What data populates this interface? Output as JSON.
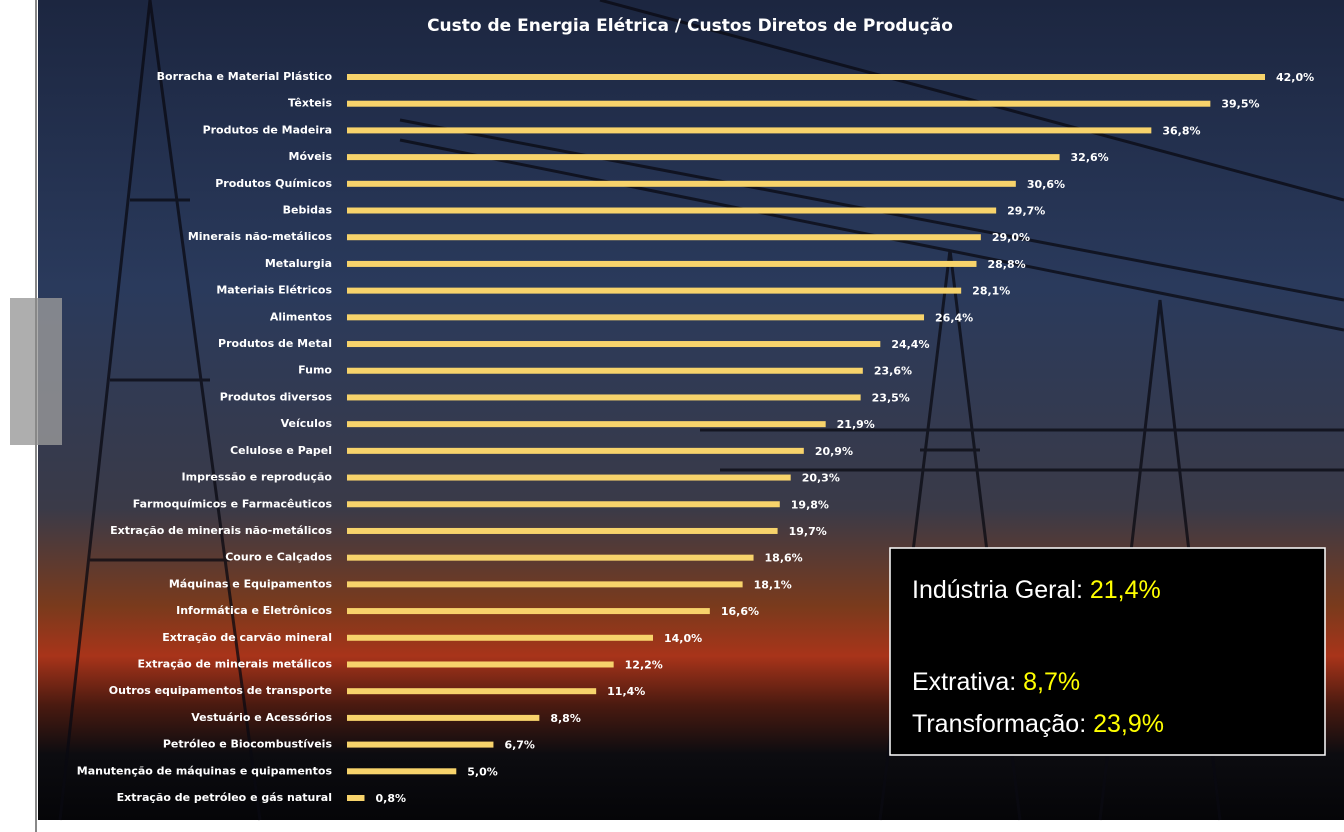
{
  "chart_data": {
    "type": "bar",
    "orientation": "horizontal",
    "title": "Custo de Energia Elétrica / Custos Diretos de Produção",
    "categories": [
      "Borracha e Material Plástico",
      "Têxteis",
      "Produtos de Madeira",
      "Móveis",
      "Produtos Químicos",
      "Bebidas",
      "Minerais não-metálicos",
      "Metalurgia",
      "Materiais Elétricos",
      "Alimentos",
      "Produtos de Metal",
      "Fumo",
      "Produtos diversos",
      "Veículos",
      "Celulose e Papel",
      "Impressão e reprodução",
      "Farmoquímicos e Farmacêuticos",
      "Extração de minerais não-metálicos",
      "Couro e Calçados",
      "Máquinas e Equipamentos",
      "Informática e Eletrônicos",
      "Extração de carvão mineral",
      "Extração de minerais metálicos",
      "Outros equipamentos de transporte",
      "Vestuário e Acessórios",
      "Petróleo e Biocombustíveis",
      "Manutenção de máquinas e quipamentos",
      "Extração de petróleo e gás natural"
    ],
    "values": [
      42.0,
      39.5,
      36.8,
      32.6,
      30.6,
      29.7,
      29.0,
      28.8,
      28.1,
      26.4,
      24.4,
      23.6,
      23.5,
      21.9,
      20.9,
      20.3,
      19.8,
      19.7,
      18.6,
      18.1,
      16.6,
      14.0,
      12.2,
      11.4,
      8.8,
      6.7,
      5.0,
      0.8
    ],
    "value_labels": [
      "42,0%",
      "39,5%",
      "36,8%",
      "32,6%",
      "30,6%",
      "29,7%",
      "29,0%",
      "28,8%",
      "28,1%",
      "26,4%",
      "24,4%",
      "23,6%",
      "23,5%",
      "21,9%",
      "20,9%",
      "20,3%",
      "19,8%",
      "19,7%",
      "18,6%",
      "18,1%",
      "16,6%",
      "14,0%",
      "12,2%",
      "11,4%",
      "8,8%",
      "6,7%",
      "5,0%",
      "0,8%"
    ],
    "color": "#f7d36b",
    "annotations": [
      {
        "label": "Indústria Geral:",
        "value": "21,4%"
      },
      {
        "label": "Extrativa:",
        "value": "8,7%"
      },
      {
        "label": "Transformação:",
        "value": "23,9%"
      }
    ]
  }
}
